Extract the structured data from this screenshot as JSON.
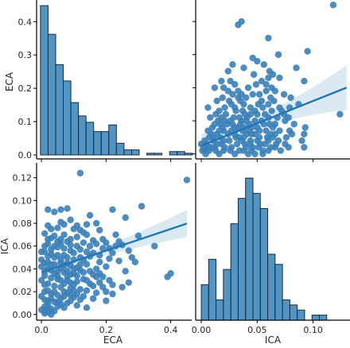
{
  "chart_data": {
    "type": "pairplot",
    "variables": [
      "ECA",
      "ICA"
    ],
    "color": "#1f77b4",
    "marker_color": "#3a7fb8",
    "grid": false,
    "ranges": {
      "ECA": [
        -0.015,
        0.465
      ],
      "ICA": [
        -0.005,
        0.133
      ]
    },
    "ticks": {
      "ECA": [
        0.0,
        0.2,
        0.4
      ],
      "ECA_hist_density": [
        0.0,
        0.1,
        0.2,
        0.3,
        0.4
      ],
      "ICA": [
        0.0,
        0.02,
        0.04,
        0.06,
        0.08,
        0.1,
        0.12
      ],
      "ICA_x": [
        0.0,
        0.05,
        0.1
      ]
    },
    "tick_labels": {
      "ECA": [
        "0.0",
        "0.2",
        "0.4"
      ],
      "ECA_hist_density": [
        "0.0",
        "0.1",
        "0.2",
        "0.3",
        "0.4"
      ],
      "ICA": [
        "0.00",
        "0.02",
        "0.04",
        "0.06",
        "0.08",
        "0.10",
        "0.12"
      ],
      "ICA_x": [
        "0.00",
        "0.05",
        "0.10"
      ]
    },
    "axis_labels": {
      "x_left": "ECA",
      "x_right": "ICA",
      "y_top": "ECA",
      "y_bottom": "ICA"
    },
    "eca_histogram": {
      "bin_width": 0.0235,
      "bin_start": -0.003,
      "heights": [
        0.448,
        0.362,
        0.271,
        0.222,
        0.157,
        0.117,
        0.098,
        0.07,
        0.07,
        0.09,
        0.035,
        0.015,
        0.015,
        0,
        0.005,
        0.005,
        0,
        0.01,
        0.01,
        0.005
      ]
    },
    "ica_histogram": {
      "bin_width": 0.0066,
      "bin_start": 0.0,
      "heights": [
        7,
        12,
        4,
        10,
        19,
        24,
        28,
        25,
        22,
        13,
        11,
        4,
        3,
        2,
        0,
        1,
        1
      ]
    },
    "regression": {
      "slope": 0.095,
      "intercept": 0.037,
      "x_range": [
        0.0,
        0.45
      ],
      "ci_half_width_at_x0": 0.0035,
      "ci_half_width_at_xmax": 0.012
    },
    "points": [
      [
        0.12,
        0.124
      ],
      [
        0.45,
        0.118
      ],
      [
        0.31,
        0.095
      ],
      [
        0.4,
        0.036
      ],
      [
        0.39,
        0.033
      ],
      [
        0.08,
        0.093
      ],
      [
        0.06,
        0.092
      ],
      [
        0.04,
        0.09
      ],
      [
        0.02,
        0.092
      ],
      [
        0.22,
        0.092
      ],
      [
        0.15,
        0.087
      ],
      [
        0.09,
        0.083
      ],
      [
        0.14,
        0.079
      ],
      [
        0.17,
        0.08
      ],
      [
        0.26,
        0.085
      ],
      [
        0.02,
        0.078
      ],
      [
        0.05,
        0.076
      ],
      [
        0.1,
        0.075
      ],
      [
        0.13,
        0.072
      ],
      [
        0.18,
        0.074
      ],
      [
        0.23,
        0.07
      ],
      [
        0.3,
        0.069
      ],
      [
        0.01,
        0.071
      ],
      [
        0.03,
        0.067
      ],
      [
        0.06,
        0.066
      ],
      [
        0.08,
        0.064
      ],
      [
        0.11,
        0.068
      ],
      [
        0.16,
        0.065
      ],
      [
        0.2,
        0.063
      ],
      [
        0.25,
        0.061
      ],
      [
        0.02,
        0.062
      ],
      [
        0.04,
        0.06
      ],
      [
        0.07,
        0.058
      ],
      [
        0.09,
        0.061
      ],
      [
        0.12,
        0.057
      ],
      [
        0.14,
        0.055
      ],
      [
        0.19,
        0.058
      ],
      [
        0.22,
        0.054
      ],
      [
        0.27,
        0.056
      ],
      [
        0.01,
        0.055
      ],
      [
        0.03,
        0.053
      ],
      [
        0.05,
        0.052
      ],
      [
        0.08,
        0.05
      ],
      [
        0.1,
        0.054
      ],
      [
        0.13,
        0.048
      ],
      [
        0.15,
        0.051
      ],
      [
        0.18,
        0.046
      ],
      [
        0.21,
        0.049
      ],
      [
        0.24,
        0.047
      ],
      [
        0.02,
        0.046
      ],
      [
        0.04,
        0.044
      ],
      [
        0.06,
        0.045
      ],
      [
        0.09,
        0.043
      ],
      [
        0.11,
        0.041
      ],
      [
        0.14,
        0.044
      ],
      [
        0.17,
        0.04
      ],
      [
        0.2,
        0.042
      ],
      [
        0.03,
        0.039
      ],
      [
        0.05,
        0.038
      ],
      [
        0.07,
        0.037
      ],
      [
        0.1,
        0.036
      ],
      [
        0.12,
        0.039
      ],
      [
        0.16,
        0.035
      ],
      [
        0.19,
        0.033
      ],
      [
        0.01,
        0.034
      ],
      [
        0.03,
        0.032
      ],
      [
        0.05,
        0.031
      ],
      [
        0.08,
        0.03
      ],
      [
        0.11,
        0.029
      ],
      [
        0.13,
        0.031
      ],
      [
        0.15,
        0.027
      ],
      [
        0.18,
        0.028
      ],
      [
        0.02,
        0.027
      ],
      [
        0.04,
        0.025
      ],
      [
        0.06,
        0.024
      ],
      [
        0.09,
        0.023
      ],
      [
        0.12,
        0.022
      ],
      [
        0.14,
        0.021
      ],
      [
        0.17,
        0.019
      ],
      [
        0.22,
        0.018
      ],
      [
        0.01,
        0.02
      ],
      [
        0.03,
        0.018
      ],
      [
        0.05,
        0.017
      ],
      [
        0.07,
        0.016
      ],
      [
        0.1,
        0.015
      ],
      [
        0.12,
        0.013
      ],
      [
        0.16,
        0.014
      ],
      [
        0.2,
        0.012
      ],
      [
        0.02,
        0.012
      ],
      [
        0.04,
        0.011
      ],
      [
        0.06,
        0.009
      ],
      [
        0.08,
        0.01
      ],
      [
        0.11,
        0.008
      ],
      [
        0.14,
        0.006
      ],
      [
        0.01,
        0.007
      ],
      [
        0.03,
        0.005
      ],
      [
        0.01,
        0.003
      ],
      [
        0.02,
        0.002
      ],
      [
        0.0,
        0.004
      ],
      [
        0.01,
        0.001
      ],
      [
        0.03,
        0.0
      ],
      [
        0.02,
        0.006
      ],
      [
        0.04,
        0.003
      ],
      [
        0.05,
        0.007
      ],
      [
        0.06,
        0.048
      ],
      [
        0.07,
        0.052
      ],
      [
        0.08,
        0.045
      ],
      [
        0.09,
        0.056
      ],
      [
        0.1,
        0.048
      ],
      [
        0.11,
        0.06
      ],
      [
        0.12,
        0.05
      ],
      [
        0.13,
        0.063
      ],
      [
        0.05,
        0.059
      ],
      [
        0.06,
        0.062
      ],
      [
        0.04,
        0.05
      ],
      [
        0.03,
        0.057
      ],
      [
        0.02,
        0.051
      ],
      [
        0.07,
        0.07
      ],
      [
        0.09,
        0.066
      ],
      [
        0.15,
        0.06
      ],
      [
        0.16,
        0.054
      ],
      [
        0.17,
        0.062
      ],
      [
        0.18,
        0.052
      ],
      [
        0.19,
        0.066
      ],
      [
        0.21,
        0.058
      ],
      [
        0.23,
        0.06
      ],
      [
        0.24,
        0.064
      ],
      [
        0.28,
        0.05
      ],
      [
        0.06,
        0.041
      ],
      [
        0.07,
        0.043
      ],
      [
        0.08,
        0.038
      ],
      [
        0.09,
        0.035
      ],
      [
        0.1,
        0.04
      ],
      [
        0.11,
        0.034
      ],
      [
        0.12,
        0.044
      ],
      [
        0.13,
        0.037
      ],
      [
        0.04,
        0.036
      ],
      [
        0.05,
        0.034
      ],
      [
        0.03,
        0.044
      ],
      [
        0.02,
        0.04
      ],
      [
        0.01,
        0.045
      ],
      [
        0.06,
        0.03
      ],
      [
        0.07,
        0.027
      ],
      [
        0.08,
        0.033
      ],
      [
        0.09,
        0.028
      ],
      [
        0.1,
        0.026
      ],
      [
        0.14,
        0.03
      ],
      [
        0.15,
        0.038
      ],
      [
        0.16,
        0.025
      ],
      [
        0.17,
        0.033
      ],
      [
        0.18,
        0.036
      ],
      [
        0.25,
        0.024
      ],
      [
        0.07,
        0.02
      ],
      [
        0.08,
        0.019
      ],
      [
        0.09,
        0.017
      ],
      [
        0.1,
        0.021
      ],
      [
        0.11,
        0.018
      ],
      [
        0.13,
        0.016
      ],
      [
        0.06,
        0.014
      ],
      [
        0.04,
        0.02
      ],
      [
        0.05,
        0.064
      ],
      [
        0.04,
        0.069
      ],
      [
        0.03,
        0.075
      ],
      [
        0.07,
        0.079
      ],
      [
        0.06,
        0.081
      ],
      [
        0.12,
        0.074
      ],
      [
        0.11,
        0.078
      ],
      [
        0.14,
        0.07
      ],
      [
        0.02,
        0.066
      ],
      [
        0.01,
        0.06
      ],
      [
        0.0,
        0.055
      ],
      [
        0.0,
        0.048
      ],
      [
        0.0,
        0.042
      ],
      [
        0.01,
        0.038
      ],
      [
        0.0,
        0.03
      ],
      [
        0.01,
        0.026
      ],
      [
        0.02,
        0.021
      ],
      [
        0.0,
        0.016
      ],
      [
        0.01,
        0.013
      ],
      [
        0.02,
        0.009
      ],
      [
        0.03,
        0.014
      ],
      [
        0.05,
        0.011
      ],
      [
        0.07,
        0.006
      ],
      [
        0.09,
        0.012
      ],
      [
        0.35,
        0.06
      ],
      [
        0.29,
        0.046
      ],
      [
        0.26,
        0.038
      ],
      [
        0.27,
        0.028
      ],
      [
        0.21,
        0.03
      ],
      [
        0.22,
        0.026
      ],
      [
        0.2,
        0.02
      ],
      [
        0.19,
        0.024
      ]
    ]
  }
}
